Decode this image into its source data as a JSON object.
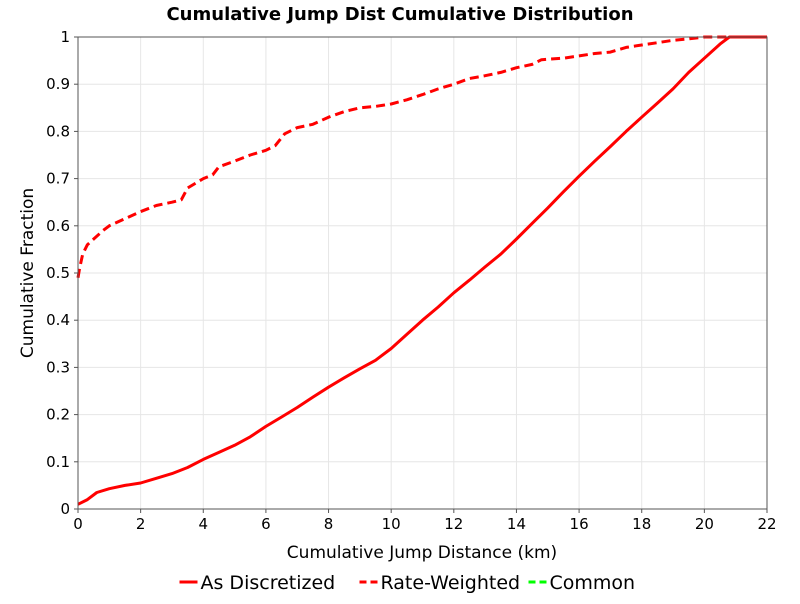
{
  "chart_data": {
    "type": "line",
    "title": "Cumulative Jump Dist Cumulative Distribution",
    "xlabel": "Cumulative Jump Distance (km)",
    "ylabel": "Cumulative Fraction",
    "xlim": [
      0,
      22
    ],
    "ylim": [
      0,
      1
    ],
    "x_ticks": [
      0,
      2,
      4,
      6,
      8,
      10,
      12,
      14,
      16,
      18,
      20,
      22
    ],
    "y_ticks": [
      0,
      0.1,
      0.2,
      0.3,
      0.4,
      0.5,
      0.6,
      0.7,
      0.8,
      0.9,
      1
    ],
    "y_tick_labels": [
      "0",
      "0.1",
      "0.2",
      "0.3",
      "0.4",
      "0.5",
      "0.6",
      "0.7",
      "0.8",
      "0.9",
      "1"
    ],
    "grid": true,
    "legend_position": "bottom",
    "series": [
      {
        "name": "As Discretized",
        "color": "#ff0000",
        "style": "solid",
        "points": [
          [
            0,
            0.01
          ],
          [
            0.3,
            0.02
          ],
          [
            0.6,
            0.035
          ],
          [
            1,
            0.043
          ],
          [
            1.5,
            0.05
          ],
          [
            2,
            0.055
          ],
          [
            2.5,
            0.065
          ],
          [
            3,
            0.075
          ],
          [
            3.5,
            0.088
          ],
          [
            4,
            0.105
          ],
          [
            4.5,
            0.12
          ],
          [
            5,
            0.135
          ],
          [
            5.5,
            0.153
          ],
          [
            6,
            0.175
          ],
          [
            6.5,
            0.195
          ],
          [
            7,
            0.215
          ],
          [
            7.5,
            0.237
          ],
          [
            8,
            0.258
          ],
          [
            8.5,
            0.278
          ],
          [
            9,
            0.297
          ],
          [
            9.5,
            0.315
          ],
          [
            10,
            0.34
          ],
          [
            10.5,
            0.37
          ],
          [
            11,
            0.4
          ],
          [
            11.5,
            0.428
          ],
          [
            12,
            0.458
          ],
          [
            12.5,
            0.485
          ],
          [
            13,
            0.513
          ],
          [
            13.5,
            0.54
          ],
          [
            14,
            0.572
          ],
          [
            14.5,
            0.605
          ],
          [
            15,
            0.638
          ],
          [
            15.5,
            0.672
          ],
          [
            16,
            0.705
          ],
          [
            16.5,
            0.737
          ],
          [
            17,
            0.768
          ],
          [
            17.5,
            0.8
          ],
          [
            18,
            0.83
          ],
          [
            18.5,
            0.86
          ],
          [
            19,
            0.89
          ],
          [
            19.5,
            0.925
          ],
          [
            20,
            0.955
          ],
          [
            20.5,
            0.985
          ],
          [
            20.8,
            1
          ],
          [
            22,
            1
          ]
        ]
      },
      {
        "name": "Rate-Weighted",
        "color": "#ff0000",
        "style": "dashed",
        "points": [
          [
            0,
            0.49
          ],
          [
            0.05,
            0.51
          ],
          [
            0.15,
            0.54
          ],
          [
            0.3,
            0.56
          ],
          [
            0.5,
            0.572
          ],
          [
            0.8,
            0.59
          ],
          [
            1,
            0.6
          ],
          [
            1.5,
            0.615
          ],
          [
            2,
            0.63
          ],
          [
            2.5,
            0.643
          ],
          [
            3,
            0.65
          ],
          [
            3.3,
            0.655
          ],
          [
            3.5,
            0.68
          ],
          [
            4,
            0.7
          ],
          [
            4.3,
            0.708
          ],
          [
            4.5,
            0.725
          ],
          [
            5,
            0.737
          ],
          [
            5.5,
            0.75
          ],
          [
            6,
            0.76
          ],
          [
            6.3,
            0.77
          ],
          [
            6.6,
            0.795
          ],
          [
            7,
            0.808
          ],
          [
            7.5,
            0.815
          ],
          [
            8,
            0.83
          ],
          [
            8.5,
            0.842
          ],
          [
            9,
            0.85
          ],
          [
            9.5,
            0.853
          ],
          [
            10,
            0.858
          ],
          [
            10.5,
            0.867
          ],
          [
            11,
            0.878
          ],
          [
            11.5,
            0.89
          ],
          [
            12,
            0.9
          ],
          [
            12.5,
            0.912
          ],
          [
            13,
            0.918
          ],
          [
            13.5,
            0.925
          ],
          [
            14,
            0.935
          ],
          [
            14.5,
            0.942
          ],
          [
            14.8,
            0.952
          ],
          [
            15.5,
            0.955
          ],
          [
            16,
            0.96
          ],
          [
            16.5,
            0.965
          ],
          [
            17,
            0.968
          ],
          [
            17.5,
            0.978
          ],
          [
            18,
            0.983
          ],
          [
            18.5,
            0.988
          ],
          [
            19,
            0.993
          ],
          [
            19.5,
            0.996
          ],
          [
            20,
            1
          ],
          [
            22,
            1
          ]
        ]
      },
      {
        "name": "Common",
        "color": "#00ff00",
        "style": "dashed",
        "points": []
      }
    ]
  }
}
